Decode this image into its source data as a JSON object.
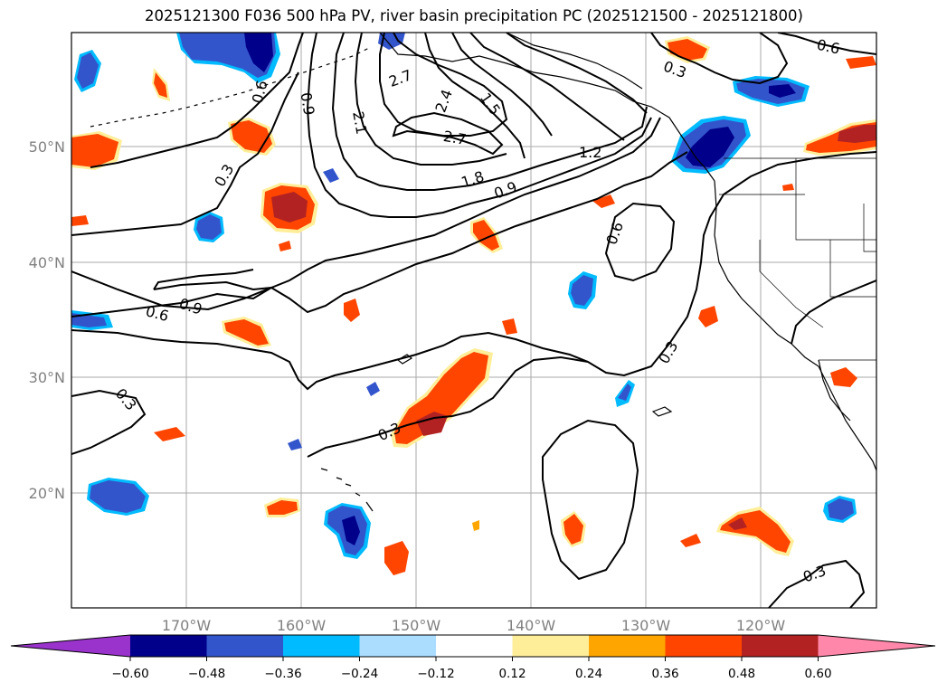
{
  "title": "2025121300 F036 500 hPa PV, river basin precipitation PC (2025121500 - 2025121800)",
  "map": {
    "lat_labels": [
      "50°N",
      "40°N",
      "30°N",
      "20°N"
    ],
    "lon_labels": [
      "170°W",
      "160°W",
      "150°W",
      "140°W",
      "130°W",
      "120°W"
    ],
    "grid": true
  },
  "contour_labels": [
    "0.3",
    "0.6",
    "0.9",
    "1.2",
    "1.5",
    "1.8",
    "2.1",
    "2.4",
    "2.7"
  ],
  "colorbar": {
    "tick_labels": [
      "−0.60",
      "−0.48",
      "−0.36",
      "−0.24",
      "−0.12",
      "0.12",
      "0.24",
      "0.36",
      "0.48",
      "0.60"
    ],
    "colors": [
      "#9933cc",
      "#00008b",
      "#3355cc",
      "#00bbff",
      "#aaddff",
      "#ffffff",
      "#ffee99",
      "#ffa500",
      "#ff4500",
      "#b22222",
      "#ff88aa"
    ]
  },
  "colors": {
    "neg_dark": "#00008b",
    "neg_mid": "#3355cc",
    "neg_light": "#00bbff",
    "pos_light": "#ffee99",
    "pos_mid": "#ff4500",
    "pos_dark": "#b22222",
    "contour": "#000000",
    "grid": "#aaaaaa"
  }
}
